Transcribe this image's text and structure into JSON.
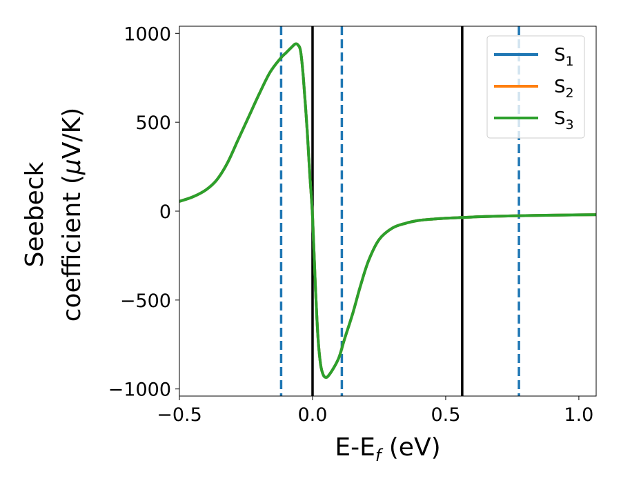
{
  "chart_data": {
    "type": "line",
    "xlabel": {
      "main": "E-E",
      "sub": "f",
      "unit": " (eV)"
    },
    "ylabel": {
      "line1": "Seebeck",
      "line2": "coefficient  (",
      "mu": "μ",
      "unit": "V/K)"
    },
    "xlim": [
      -0.5,
      1.065
    ],
    "ylim": [
      -1040,
      1040
    ],
    "xticks": [
      -0.5,
      0.0,
      0.5,
      1.0
    ],
    "xtick_labels": [
      "−0.5",
      "0.0",
      "0.5",
      "1.0"
    ],
    "yticks": [
      1000,
      500,
      0,
      -500,
      -1000
    ],
    "ytick_labels": [
      "1000",
      "500",
      "0",
      "−500",
      "−1000"
    ],
    "grid": false,
    "legend_position": "top-right",
    "series": [
      {
        "name": "S",
        "sub": "1",
        "color": "#1f77b4"
      },
      {
        "name": "S",
        "sub": "2",
        "color": "#ff7f0e"
      },
      {
        "name": "S",
        "sub": "3",
        "color": "#2ca02c"
      }
    ],
    "curve": {
      "x": [
        -0.5,
        -0.45,
        -0.4,
        -0.36,
        -0.32,
        -0.28,
        -0.24,
        -0.2,
        -0.16,
        -0.12,
        -0.1,
        -0.08,
        -0.065,
        -0.055,
        -0.045,
        -0.035,
        -0.02,
        -0.01,
        0.0,
        0.01,
        0.02,
        0.03,
        0.04,
        0.05,
        0.06,
        0.08,
        0.1,
        0.12,
        0.15,
        0.18,
        0.21,
        0.25,
        0.3,
        0.35,
        0.4,
        0.45,
        0.5,
        0.56,
        0.65,
        0.8,
        0.95,
        1.065
      ],
      "y": [
        55,
        80,
        120,
        175,
        270,
        400,
        530,
        660,
        780,
        860,
        890,
        920,
        940,
        935,
        900,
        760,
        450,
        200,
        -30,
        -400,
        -700,
        -860,
        -920,
        -935,
        -925,
        -880,
        -820,
        -720,
        -580,
        -420,
        -280,
        -160,
        -95,
        -68,
        -52,
        -45,
        -40,
        -36,
        -30,
        -25,
        -22,
        -20
      ]
    },
    "vlines_solid": [
      0.0,
      0.562
    ],
    "vlines_dashed": [
      -0.118,
      0.11,
      0.775
    ],
    "vline_solid_color": "#000000",
    "vline_dashed_color": "#1f77b4"
  }
}
